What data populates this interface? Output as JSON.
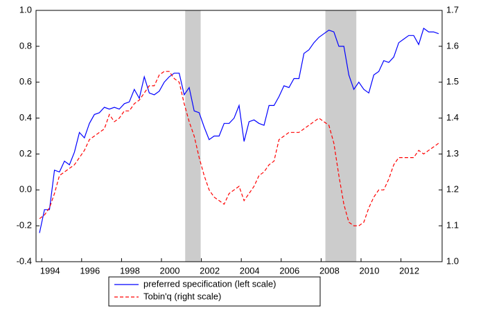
{
  "chart_data": {
    "type": "line",
    "categories": [
      null,
      "1994",
      null,
      null,
      null,
      null,
      null,
      null,
      null,
      "1996",
      null,
      null,
      null,
      null,
      null,
      null,
      null,
      "1998",
      null,
      null,
      null,
      null,
      null,
      null,
      null,
      "2000",
      null,
      null,
      null,
      null,
      null,
      null,
      null,
      "2002",
      null,
      null,
      null,
      null,
      null,
      null,
      null,
      "2004",
      null,
      null,
      null,
      null,
      null,
      null,
      null,
      "2006",
      null,
      null,
      null,
      null,
      null,
      null,
      null,
      "2008",
      null,
      null,
      null,
      null,
      null,
      null,
      null,
      "2010",
      null,
      null,
      null,
      null,
      null,
      null,
      null,
      "2012",
      null,
      null,
      null,
      null,
      null,
      null,
      null
    ],
    "series": [
      {
        "name": "preferred specification (left scale)",
        "color": "#0000ff",
        "dash": false,
        "values": [
          -0.24,
          -0.11,
          -0.11,
          0.11,
          0.1,
          0.16,
          0.14,
          0.21,
          0.32,
          0.29,
          0.37,
          0.42,
          0.43,
          0.46,
          0.45,
          0.46,
          0.45,
          0.48,
          0.49,
          0.56,
          0.51,
          0.63,
          0.54,
          0.53,
          0.55,
          0.6,
          0.63,
          0.65,
          0.65,
          0.53,
          0.57,
          0.44,
          0.43,
          0.35,
          0.28,
          0.3,
          0.3,
          0.37,
          0.37,
          0.4,
          0.47,
          0.27,
          0.38,
          0.39,
          0.37,
          0.36,
          0.47,
          0.47,
          0.52,
          0.58,
          0.57,
          0.62,
          0.62,
          0.76,
          0.78,
          0.82,
          0.85,
          0.87,
          0.89,
          0.88,
          0.8,
          0.8,
          0.64,
          0.56,
          0.6,
          0.56,
          0.54,
          0.64,
          0.66,
          0.72,
          0.71,
          0.74,
          0.82,
          0.84,
          0.86,
          0.86,
          0.81,
          0.9,
          0.88,
          0.88,
          0.87
        ]
      },
      {
        "name": "Tobin'q (right scale)",
        "color": "#ff0000",
        "dash": true,
        "axis": "y2",
        "values": [
          1.12,
          1.13,
          1.15,
          1.19,
          1.24,
          1.25,
          1.26,
          1.27,
          1.29,
          1.31,
          1.34,
          1.35,
          1.36,
          1.37,
          1.41,
          1.39,
          1.4,
          1.42,
          1.42,
          1.44,
          1.45,
          1.47,
          1.49,
          1.49,
          1.52,
          1.53,
          1.53,
          1.51,
          1.5,
          1.44,
          1.39,
          1.35,
          1.29,
          1.24,
          1.2,
          1.18,
          1.17,
          1.16,
          1.19,
          1.2,
          1.21,
          1.17,
          1.19,
          1.21,
          1.24,
          1.25,
          1.27,
          1.28,
          1.34,
          1.35,
          1.36,
          1.36,
          1.36,
          1.37,
          1.38,
          1.39,
          1.4,
          1.39,
          1.38,
          1.33,
          1.24,
          1.16,
          1.11,
          1.1,
          1.1,
          1.11,
          1.15,
          1.18,
          1.2,
          1.2,
          1.23,
          1.27,
          1.29,
          1.29,
          1.29,
          1.29,
          1.31,
          1.3,
          1.31,
          1.32,
          1.33
        ]
      }
    ],
    "shaded": [
      [
        29.2,
        32.3
      ],
      [
        57.3,
        63.5
      ]
    ],
    "ylim": [
      -0.4,
      1.0
    ],
    "yticks": [
      -0.4,
      -0.2,
      {
        "value": 0,
        "label": "0.0"
      },
      0.2,
      0.4,
      0.6,
      0.8,
      {
        "value": 1,
        "label": "1.0"
      }
    ],
    "y2lim": [
      1.0,
      1.7
    ],
    "y2ticks": [
      {
        "value": 1,
        "label": "1.0"
      },
      1.1,
      1.2,
      1.3,
      1.4,
      1.5,
      1.6,
      1.7
    ],
    "grid": false
  }
}
